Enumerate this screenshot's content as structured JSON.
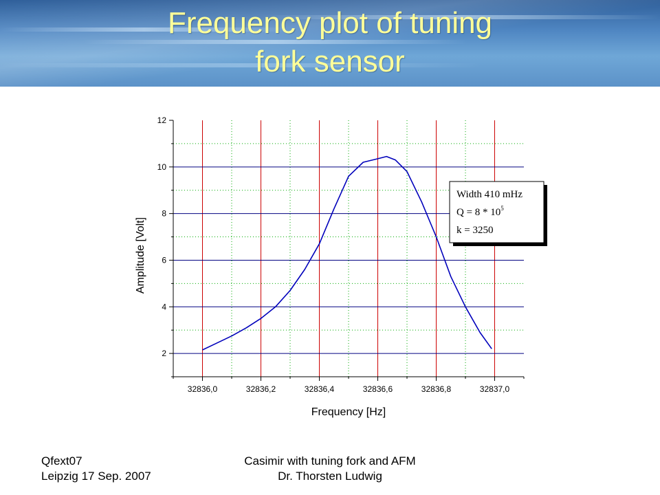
{
  "slide": {
    "title_line1": "Frequency plot of tuning",
    "title_line2": "fork sensor",
    "footer_left_line1": "Qfext07",
    "footer_left_line2": "Leipzig 17 Sep. 2007",
    "footer_center_line1": "Casimir with tuning fork and AFM",
    "footer_center_line2": "Dr. Thorsten Ludwig",
    "colors": {
      "title": "#ffff99",
      "banner": "#4f86c2"
    }
  },
  "chart_data": {
    "type": "line",
    "title": "",
    "xlabel": "Frequency [Hz]",
    "ylabel": "Amplitude [Volt]",
    "xlim": [
      32835.9,
      32837.1
    ],
    "ylim": [
      1,
      12
    ],
    "x_ticks": [
      32836.0,
      32836.2,
      32836.4,
      32836.6,
      32836.8,
      32837.0
    ],
    "x_tick_labels": [
      "32836,0",
      "32836,2",
      "32836,4",
      "32836,6",
      "32836,8",
      "32837,0"
    ],
    "y_ticks": [
      2,
      4,
      6,
      8,
      10,
      12
    ],
    "y_tick_labels": [
      "2",
      "4",
      "6",
      "8",
      "10",
      "12"
    ],
    "grid": {
      "major_x_color": "#cc0000",
      "minor_x_color": "#00aa00",
      "major_y_color": "#000080",
      "minor_y_color": "#00aa00"
    },
    "line_color": "#0000bb",
    "series": [
      {
        "x": [
          32836.0,
          32836.05,
          32836.1,
          32836.15,
          32836.2,
          32836.25,
          32836.3,
          32836.35,
          32836.4,
          32836.45,
          32836.5,
          32836.55,
          32836.6,
          32836.63,
          32836.66,
          32836.7,
          32836.75,
          32836.8,
          32836.85,
          32836.9,
          32836.95,
          32836.99
        ],
        "y": [
          2.15,
          2.45,
          2.75,
          3.1,
          3.5,
          4.0,
          4.7,
          5.6,
          6.7,
          8.2,
          9.6,
          10.2,
          10.35,
          10.45,
          10.3,
          9.8,
          8.5,
          7.0,
          5.3,
          4.0,
          2.9,
          2.2
        ]
      }
    ],
    "annotation": {
      "line1": "Width 410 mHz",
      "line2_base": "Q = 8 * 10",
      "line2_exp": "5",
      "line3": "k = 3250"
    }
  }
}
